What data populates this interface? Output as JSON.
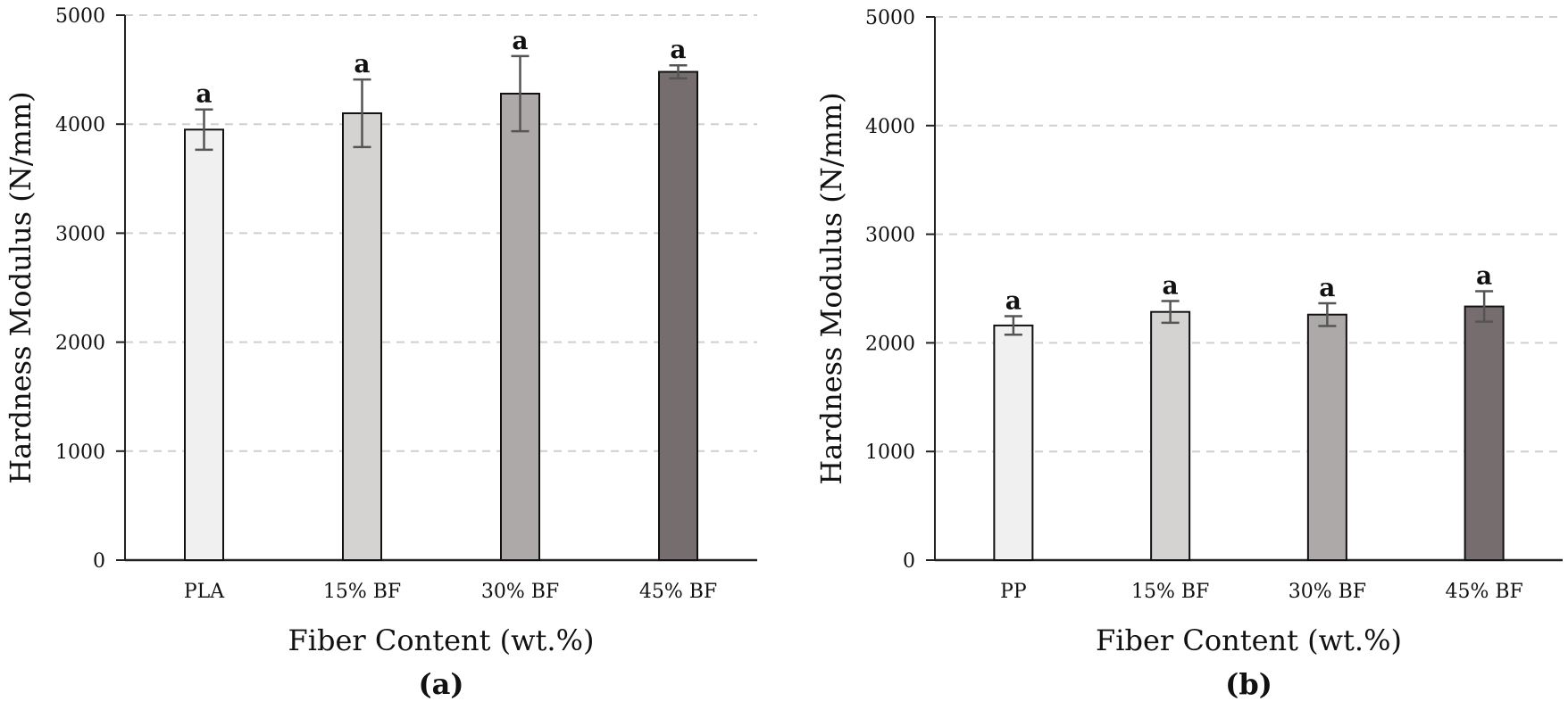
{
  "colors": {
    "background": "#ffffff",
    "axis": "#222222",
    "grid": "#cfcfcf",
    "error_bar": "#555555",
    "bar_outline": "#111111"
  },
  "chart_data": [
    {
      "type": "bar",
      "panel_label": "(a)",
      "categories": [
        "PLA",
        "15% BF",
        "30% BF",
        "45% BF"
      ],
      "values": [
        3950,
        4100,
        4280,
        4480
      ],
      "errors": [
        185,
        310,
        345,
        60
      ],
      "significance": [
        "a",
        "a",
        "a",
        "a"
      ],
      "bar_colors": [
        "#f0f0f0",
        "#d4d3d2",
        "#ada9a8",
        "#766e6e"
      ],
      "xlabel": "Fiber Content (wt.%)",
      "ylabel": "Hardness Modulus (N/mm)",
      "ylim": [
        0,
        5000
      ],
      "yticks": [
        0,
        1000,
        2000,
        3000,
        4000,
        5000
      ],
      "grid": true,
      "grid_style": "dashed"
    },
    {
      "type": "bar",
      "panel_label": "(b)",
      "categories": [
        "PP",
        "15% BF",
        "30% BF",
        "45% BF"
      ],
      "values": [
        2160,
        2285,
        2260,
        2335
      ],
      "errors": [
        85,
        100,
        105,
        140
      ],
      "significance": [
        "a",
        "a",
        "a",
        "a"
      ],
      "bar_colors": [
        "#f0f0f0",
        "#d4d3d2",
        "#ada9a8",
        "#766e6e"
      ],
      "xlabel": "Fiber Content (wt.%)",
      "ylabel": "Hardness Modulus (N/mm)",
      "ylim": [
        0,
        5000
      ],
      "yticks": [
        0,
        1000,
        2000,
        3000,
        4000,
        5000
      ],
      "grid": true,
      "grid_style": "dashed"
    }
  ]
}
